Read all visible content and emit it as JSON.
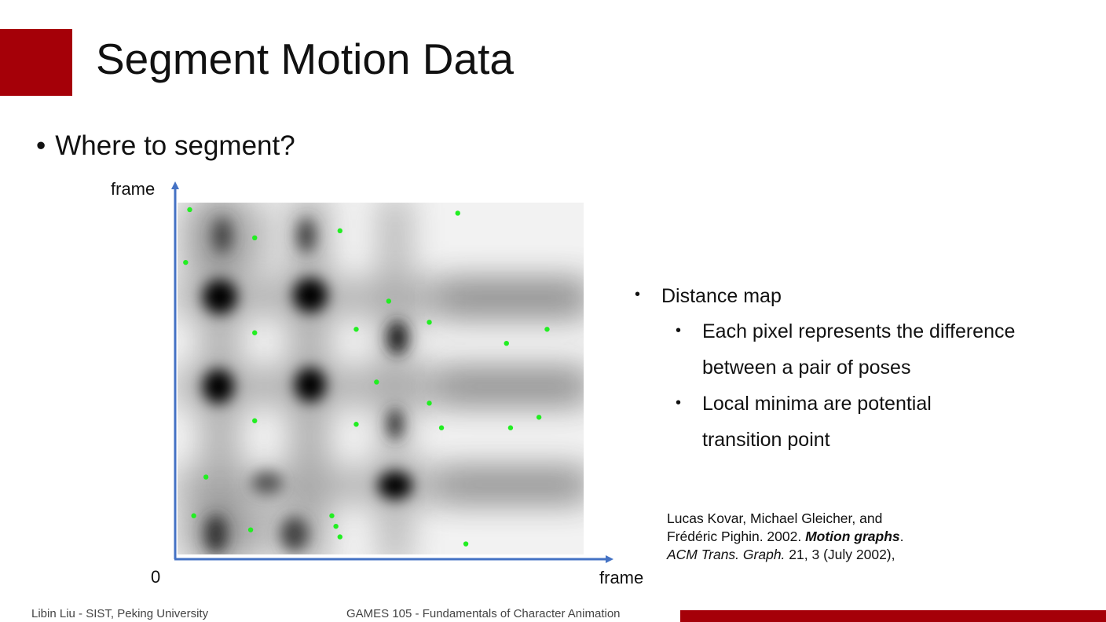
{
  "slide": {
    "title": "Segment Motion Data",
    "bullet": "Where to segment?",
    "accent_color": "#a50008",
    "point_color": "#22ee22",
    "axis_color": "#4472c4"
  },
  "figure": {
    "y_axis_label": "frame",
    "x_axis_label": "frame",
    "origin_label": "0"
  },
  "right_list": {
    "item1": "Distance map",
    "sub1_line1": "Each pixel represents the difference",
    "sub1_line2": "between a pair of poses",
    "sub2_line1": "Local minima are potential",
    "sub2_line2": "transition point",
    "bullet_char": "•"
  },
  "reference": {
    "line1": "Lucas Kovar, Michael Gleicher, and",
    "line2_pre": "Frédéric Pighin. 2002. ",
    "line2_bold": "Motion graphs",
    "line2_post": ".",
    "line3_italic": "ACM Trans. Graph.",
    "line3_post": " 21, 3 (July 2002),"
  },
  "footer": {
    "left": "Libin Liu - SIST, Peking University",
    "center": "GAMES 105 - Fundamentals of Character Animation"
  },
  "distance_map": {
    "minima_points": [
      [
        0.03,
        0.98
      ],
      [
        0.19,
        0.9
      ],
      [
        0.4,
        0.92
      ],
      [
        0.69,
        0.97
      ],
      [
        0.02,
        0.83
      ],
      [
        0.52,
        0.72
      ],
      [
        0.19,
        0.63
      ],
      [
        0.44,
        0.64
      ],
      [
        0.62,
        0.66
      ],
      [
        0.81,
        0.6
      ],
      [
        0.91,
        0.64
      ],
      [
        0.49,
        0.49
      ],
      [
        0.62,
        0.43
      ],
      [
        0.19,
        0.38
      ],
      [
        0.44,
        0.37
      ],
      [
        0.65,
        0.36
      ],
      [
        0.82,
        0.36
      ],
      [
        0.89,
        0.39
      ],
      [
        0.07,
        0.22
      ],
      [
        0.04,
        0.11
      ],
      [
        0.18,
        0.07
      ],
      [
        0.38,
        0.11
      ],
      [
        0.39,
        0.08
      ],
      [
        0.4,
        0.05
      ],
      [
        0.71,
        0.03
      ]
    ]
  }
}
